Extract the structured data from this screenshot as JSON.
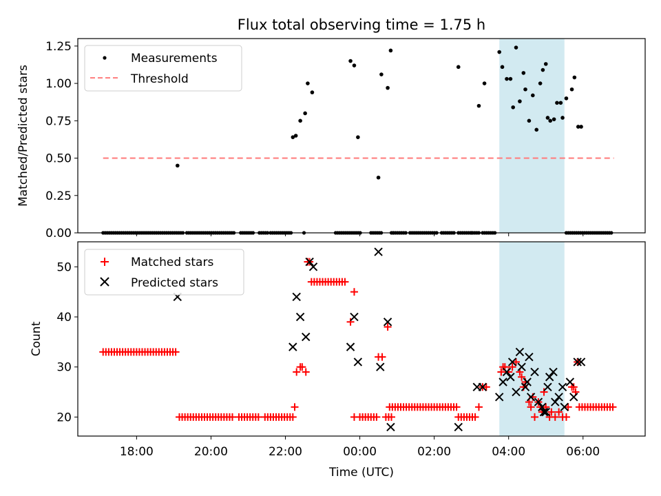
{
  "figure": {
    "title": "Flux total observing time = 1.75 h",
    "xlabel": "Time (UTC)"
  },
  "chart_data": [
    {
      "type": "scatter",
      "ylabel": "Matched/Predicted stars",
      "ylim": [
        0,
        1.3
      ],
      "yticks": [
        "0.00",
        "0.25",
        "0.50",
        "0.75",
        "1.00",
        "1.25"
      ],
      "ytick_values": [
        0,
        0.25,
        0.5,
        0.75,
        1.0,
        1.25
      ],
      "xticks": [
        "18:00",
        "20:00",
        "22:00",
        "00:00",
        "02:00",
        "04:00",
        "06:00"
      ],
      "xtick_hours": [
        18,
        20,
        22,
        24,
        26,
        28,
        30
      ],
      "xlim_hours": [
        16.42,
        31.67
      ],
      "legend": {
        "placement": "upper-left",
        "entries": [
          {
            "label": "Measurements",
            "marker": "dot",
            "color": "#000000"
          },
          {
            "label": "Threshold",
            "marker": "dashed-line",
            "color": "#ff7f7f"
          }
        ]
      },
      "highlight_band_hours": [
        27.75,
        29.5
      ],
      "highlight_color": "#add8e6",
      "threshold": {
        "value": 0.5,
        "x_hours": [
          17.1,
          30.83
        ],
        "color": "#ff7f7f"
      },
      "zero_runs_hours": [
        [
          17.1,
          19.25
        ],
        [
          19.35,
          20.65
        ],
        [
          20.8,
          21.15
        ],
        [
          21.3,
          21.55
        ],
        [
          21.6,
          22.2
        ],
        [
          23.35,
          24.05
        ],
        [
          24.3,
          24.6
        ],
        [
          24.85,
          25.25
        ],
        [
          25.35,
          26.1
        ],
        [
          26.2,
          26.55
        ],
        [
          26.65,
          27.2
        ],
        [
          27.3,
          27.65
        ],
        [
          29.55,
          30.8
        ]
      ],
      "zero_points_hours": [
        22.5,
        24.9,
        27.0
      ],
      "series": [
        {
          "name": "Measurements",
          "points": [
            [
              19.1,
              0.45
            ],
            [
              22.2,
              0.64
            ],
            [
              22.28,
              0.65
            ],
            [
              22.4,
              0.75
            ],
            [
              22.53,
              0.8
            ],
            [
              22.6,
              1.0
            ],
            [
              22.72,
              0.94
            ],
            [
              23.75,
              1.15
            ],
            [
              23.85,
              1.12
            ],
            [
              23.95,
              0.64
            ],
            [
              24.5,
              0.37
            ],
            [
              24.58,
              1.06
            ],
            [
              24.75,
              0.97
            ],
            [
              24.83,
              1.22
            ],
            [
              26.65,
              1.11
            ],
            [
              27.2,
              0.85
            ],
            [
              27.35,
              1.0
            ],
            [
              27.75,
              1.21
            ],
            [
              27.83,
              1.11
            ],
            [
              27.95,
              1.03
            ],
            [
              28.05,
              1.03
            ],
            [
              28.12,
              0.84
            ],
            [
              28.2,
              1.24
            ],
            [
              28.3,
              0.88
            ],
            [
              28.4,
              1.07
            ],
            [
              28.45,
              0.96
            ],
            [
              28.55,
              0.75
            ],
            [
              28.65,
              0.92
            ],
            [
              28.75,
              0.69
            ],
            [
              28.85,
              1.0
            ],
            [
              28.92,
              1.09
            ],
            [
              29.0,
              1.13
            ],
            [
              29.05,
              0.77
            ],
            [
              29.12,
              0.75
            ],
            [
              29.22,
              0.76
            ],
            [
              29.3,
              0.87
            ],
            [
              29.4,
              0.87
            ],
            [
              29.45,
              0.77
            ],
            [
              29.55,
              0.9
            ],
            [
              29.7,
              0.96
            ],
            [
              29.77,
              1.04
            ],
            [
              29.87,
              0.71
            ],
            [
              29.95,
              0.71
            ]
          ]
        }
      ]
    },
    {
      "type": "scatter",
      "ylabel": "Count",
      "ylim": [
        16.2,
        55.0
      ],
      "yticks": [
        "20",
        "30",
        "40",
        "50"
      ],
      "ytick_values": [
        20,
        30,
        40,
        50
      ],
      "xticks": [
        "18:00",
        "20:00",
        "22:00",
        "00:00",
        "02:00",
        "04:00",
        "06:00"
      ],
      "xtick_hours": [
        18,
        20,
        22,
        24,
        26,
        28,
        30
      ],
      "xlim_hours": [
        16.42,
        31.67
      ],
      "legend": {
        "placement": "upper-left",
        "entries": [
          {
            "label": "Matched stars",
            "marker": "plus",
            "color": "#ff0000"
          },
          {
            "label": "Predicted stars",
            "marker": "x",
            "color": "#000000"
          }
        ]
      },
      "highlight_band_hours": [
        27.75,
        29.5
      ],
      "highlight_color": "#add8e6",
      "runs": [
        {
          "from": 17.1,
          "to": 19.05,
          "value": 33
        },
        {
          "from": 19.15,
          "to": 20.6,
          "value": 20
        },
        {
          "from": 20.75,
          "to": 21.3,
          "value": 20
        },
        {
          "from": 21.45,
          "to": 22.2,
          "value": 20
        },
        {
          "from": 22.7,
          "to": 23.6,
          "value": 47
        },
        {
          "from": 24.0,
          "to": 24.5,
          "value": 20
        },
        {
          "from": 24.7,
          "to": 24.9,
          "value": 20
        },
        {
          "from": 24.8,
          "to": 26.55,
          "value": 22
        },
        {
          "from": 26.65,
          "to": 27.1,
          "value": 20
        },
        {
          "from": 29.9,
          "to": 30.85,
          "value": 22
        }
      ],
      "series": [
        {
          "name": "Matched stars",
          "points": [
            [
              22.25,
              22
            ],
            [
              22.3,
              29
            ],
            [
              22.4,
              30
            ],
            [
              22.45,
              30
            ],
            [
              22.55,
              29
            ],
            [
              22.6,
              51
            ],
            [
              22.65,
              51
            ],
            [
              23.75,
              39
            ],
            [
              23.85,
              45
            ],
            [
              23.85,
              20
            ],
            [
              24.5,
              32
            ],
            [
              24.6,
              32
            ],
            [
              24.75,
              38
            ],
            [
              26.6,
              22
            ],
            [
              27.2,
              22
            ],
            [
              27.3,
              26
            ],
            [
              27.4,
              26
            ],
            [
              27.8,
              29
            ],
            [
              27.85,
              30
            ],
            [
              27.9,
              30
            ],
            [
              28.0,
              29
            ],
            [
              28.1,
              30
            ],
            [
              28.2,
              31
            ],
            [
              28.3,
              29
            ],
            [
              28.35,
              28
            ],
            [
              28.4,
              26
            ],
            [
              28.45,
              27
            ],
            [
              28.55,
              23
            ],
            [
              28.6,
              22
            ],
            [
              28.65,
              24
            ],
            [
              28.7,
              20
            ],
            [
              28.8,
              23
            ],
            [
              28.85,
              22
            ],
            [
              28.9,
              21
            ],
            [
              28.95,
              25
            ],
            [
              29.0,
              22
            ],
            [
              29.1,
              20
            ],
            [
              29.15,
              21
            ],
            [
              29.25,
              20
            ],
            [
              29.35,
              21
            ],
            [
              29.45,
              20
            ],
            [
              29.55,
              20
            ],
            [
              29.6,
              22
            ],
            [
              29.7,
              26
            ],
            [
              29.75,
              26
            ],
            [
              29.8,
              25
            ],
            [
              29.85,
              31
            ]
          ]
        },
        {
          "name": "Predicted stars",
          "points": [
            [
              19.1,
              44
            ],
            [
              22.2,
              34
            ],
            [
              22.3,
              44
            ],
            [
              22.4,
              40
            ],
            [
              22.55,
              36
            ],
            [
              22.65,
              51
            ],
            [
              22.75,
              50
            ],
            [
              23.75,
              34
            ],
            [
              23.85,
              40
            ],
            [
              23.95,
              31
            ],
            [
              24.5,
              53
            ],
            [
              24.55,
              30
            ],
            [
              24.75,
              39
            ],
            [
              24.83,
              18
            ],
            [
              26.65,
              18
            ],
            [
              27.15,
              26
            ],
            [
              27.3,
              26
            ],
            [
              27.75,
              24
            ],
            [
              27.85,
              27
            ],
            [
              27.95,
              29
            ],
            [
              28.05,
              28
            ],
            [
              28.1,
              31
            ],
            [
              28.2,
              25
            ],
            [
              28.3,
              33
            ],
            [
              28.35,
              30
            ],
            [
              28.45,
              26
            ],
            [
              28.5,
              27
            ],
            [
              28.55,
              32
            ],
            [
              28.6,
              24
            ],
            [
              28.7,
              29
            ],
            [
              28.8,
              23
            ],
            [
              28.9,
              22
            ],
            [
              28.95,
              21
            ],
            [
              29.0,
              21
            ],
            [
              29.05,
              26
            ],
            [
              29.1,
              28
            ],
            [
              29.2,
              29
            ],
            [
              29.25,
              23
            ],
            [
              29.35,
              24
            ],
            [
              29.45,
              26
            ],
            [
              29.5,
              22
            ],
            [
              29.65,
              27
            ],
            [
              29.75,
              24
            ],
            [
              29.85,
              31
            ],
            [
              29.95,
              31
            ]
          ]
        }
      ]
    }
  ]
}
